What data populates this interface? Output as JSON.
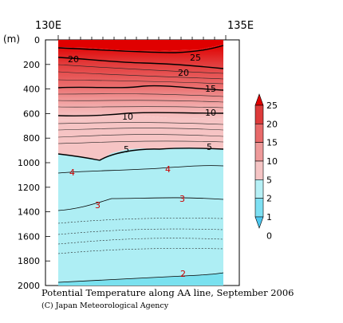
{
  "chart_data": {
    "type": "heatmap",
    "title": "Potential Temperature along AA line, September 2006",
    "credit": "(C) Japan Meteorological Agency",
    "ylabel": "(m)",
    "x_ticks": [
      "130E",
      "135E"
    ],
    "y_ticks": [
      0,
      200,
      400,
      600,
      800,
      1000,
      1200,
      1400,
      1600,
      1800,
      2000
    ],
    "ylim": [
      2000,
      0
    ],
    "legend_levels": [
      0,
      1,
      2,
      5,
      10,
      15,
      20,
      25
    ],
    "legend_colors": [
      "#4cc8f0",
      "#7ee0f3",
      "#b6f0f6",
      "#f5c5c5",
      "#ee9a9a",
      "#e86a6a",
      "#dd3b3b",
      "#e00000"
    ],
    "contours": [
      {
        "label": "25",
        "depth": [
          45,
          45
        ]
      },
      {
        "label": "20",
        "depth": [
          150,
          150
        ]
      },
      {
        "label": "15",
        "depth": [
          400,
          380
        ]
      },
      {
        "label": "10",
        "depth": [
          620,
          600
        ]
      },
      {
        "label": "5",
        "depth": [
          900,
          880
        ]
      },
      {
        "label": "4",
        "depth": [
          1060,
          1010
        ]
      },
      {
        "label": "3",
        "depth": [
          1380,
          1300
        ]
      },
      {
        "label": "2",
        "depth": [
          1970,
          1880
        ]
      }
    ]
  }
}
